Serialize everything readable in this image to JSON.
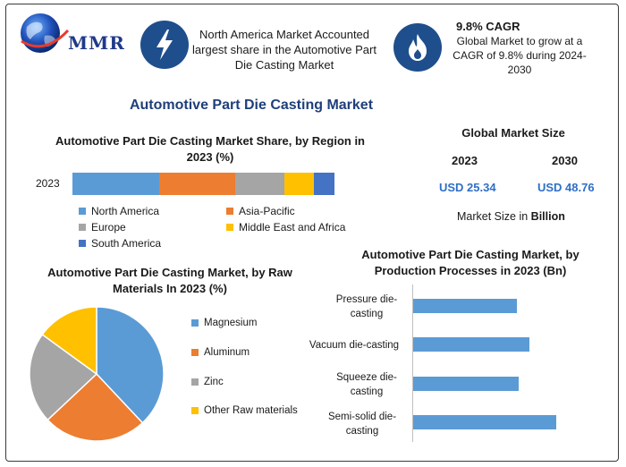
{
  "header": {
    "logo_text": "MMR",
    "box1_text": "North America Market Accounted largest share in the Automotive Part Die Casting Market",
    "box2_title": "9.8% CAGR",
    "box2_text": "Global Market to grow at a CAGR of 9.8% during 2024-2030",
    "box1_icon": "lightning-icon",
    "box2_icon": "flame-icon"
  },
  "main_title": "Automotive Part Die Casting Market",
  "colors": {
    "north_america": "#5b9bd5",
    "asia_pacific": "#ed7d31",
    "europe": "#a5a5a5",
    "mea": "#ffc000",
    "south_america": "#4472c4",
    "bars": "#5b9bd5",
    "accent": "#2f6fc6"
  },
  "chart_data": [
    {
      "type": "bar",
      "orientation": "horizontal-stacked",
      "title": "Automotive Part Die Casting Market Share, by Region in 2023 (%)",
      "categories": [
        "2023"
      ],
      "series": [
        {
          "name": "North America",
          "values": [
            33
          ]
        },
        {
          "name": "Asia-Pacific",
          "values": [
            29
          ]
        },
        {
          "name": "Europe",
          "values": [
            19
          ]
        },
        {
          "name": "Middle East and Africa",
          "values": [
            11
          ]
        },
        {
          "name": "South America",
          "values": [
            8
          ]
        }
      ],
      "legend": "bottom"
    },
    {
      "type": "pie",
      "title": "Automotive Part Die Casting Market, by Raw Materials In 2023 (%)",
      "labels": [
        "Magnesium",
        "Aluminum",
        "Zinc",
        "Other Raw materials"
      ],
      "values": [
        38,
        25,
        22,
        15
      ],
      "legend": "right"
    },
    {
      "type": "bar",
      "orientation": "horizontal",
      "title": "Automotive Part Die Casting Market, by Production Processes in 2023 (Bn)",
      "categories": [
        "Pressure die-casting",
        "Vacuum die-casting",
        "Squeeze die-casting",
        "Semi-solid die-casting"
      ],
      "values": [
        5.5,
        6.2,
        5.6,
        7.6
      ],
      "xlim": [
        0,
        10
      ]
    }
  ],
  "market_size": {
    "title": "Global Market Size",
    "year1": "2023",
    "year2": "2030",
    "value1": "USD 25.34",
    "value2": "USD 48.76",
    "unit_prefix": "Market Size in ",
    "unit_bold": "Billion"
  }
}
